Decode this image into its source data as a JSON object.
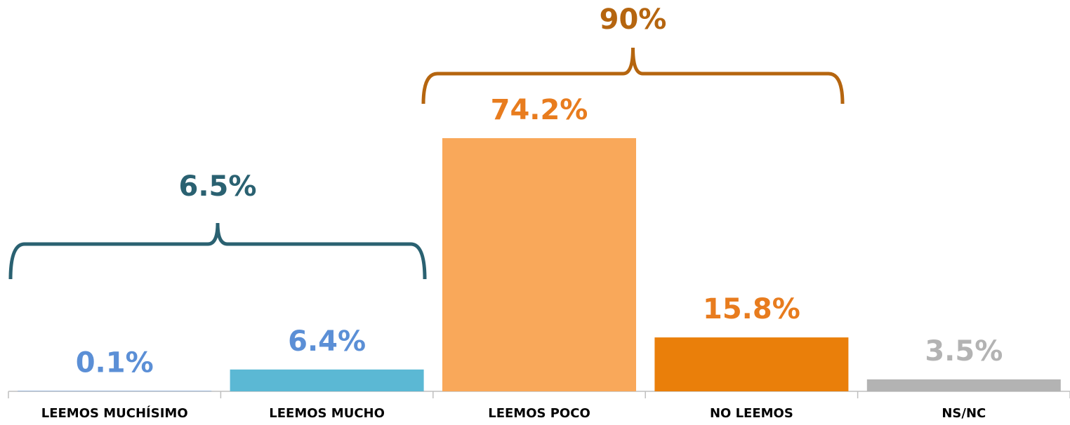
{
  "chart_data": {
    "type": "bar",
    "categories": [
      "LEEMOS MUCHÍSIMO",
      "LEEMOS MUCHO",
      "LEEMOS POCO",
      "NO LEEMOS",
      "NS/NC"
    ],
    "values": [
      0.1,
      6.4,
      74.2,
      15.8,
      3.5
    ],
    "value_labels": [
      "0.1%",
      "6.4%",
      "74.2%",
      "15.8%",
      "3.5%"
    ],
    "colors": [
      "#5b8fd6",
      "#5bb8d4",
      "#f9a85a",
      "#ea7f0a",
      "#b3b3b3"
    ],
    "label_colors": [
      "#5b8fd6",
      "#5b8fd6",
      "#e87c1e",
      "#e87c1e",
      "#b3b3b3"
    ],
    "annotations": [
      {
        "value": 6.5,
        "label": "6.5%",
        "color": "#2a6171"
      },
      {
        "value": 90,
        "label": "90%",
        "color": "#b5650f"
      }
    ]
  }
}
